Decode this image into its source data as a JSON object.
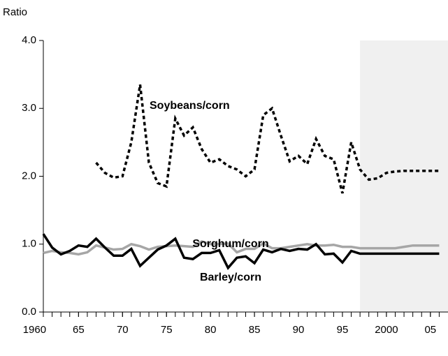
{
  "chart_data": {
    "type": "line",
    "y_axis_label": "Ratio",
    "x": [
      1961,
      1962,
      1963,
      1964,
      1965,
      1966,
      1967,
      1968,
      1969,
      1970,
      1971,
      1972,
      1973,
      1974,
      1975,
      1976,
      1977,
      1978,
      1979,
      1980,
      1981,
      1982,
      1983,
      1984,
      1985,
      1986,
      1987,
      1988,
      1989,
      1990,
      1991,
      1992,
      1993,
      1994,
      1995,
      1996,
      1997,
      1998,
      1999,
      2000,
      2001,
      2002,
      2003,
      2004,
      2005,
      2006
    ],
    "series": [
      {
        "name": "Soybeans/corn",
        "color": "#000000",
        "dash": "dotted",
        "values": [
          null,
          null,
          null,
          null,
          null,
          null,
          2.2,
          2.05,
          1.98,
          2.0,
          2.5,
          3.35,
          2.2,
          1.9,
          1.85,
          2.85,
          2.6,
          2.72,
          2.4,
          2.2,
          2.25,
          2.15,
          2.1,
          2.0,
          2.1,
          2.9,
          3.0,
          2.6,
          2.22,
          2.3,
          2.18,
          2.55,
          2.3,
          2.25,
          1.75,
          2.5,
          2.1,
          1.95,
          1.97,
          2.05,
          2.07,
          2.08,
          2.08,
          2.08,
          2.08,
          2.08
        ]
      },
      {
        "name": "Sorghum/corn",
        "color": "#a6a6a6",
        "dash": "solid",
        "values": [
          0.87,
          0.9,
          0.88,
          0.87,
          0.85,
          0.88,
          0.98,
          0.95,
          0.92,
          0.93,
          1.0,
          0.97,
          0.92,
          0.96,
          0.97,
          0.98,
          0.97,
          0.96,
          1.04,
          1.0,
          1.0,
          1.01,
          0.88,
          0.93,
          0.93,
          1.01,
          0.94,
          0.94,
          0.96,
          0.98,
          1.0,
          0.98,
          0.98,
          0.99,
          0.96,
          0.96,
          0.94,
          0.94,
          0.94,
          0.94,
          0.94,
          0.96,
          0.98,
          0.98,
          0.98,
          0.98
        ]
      },
      {
        "name": "Barley/corn",
        "color": "#000000",
        "dash": "solid",
        "values": [
          1.15,
          0.95,
          0.85,
          0.9,
          0.98,
          0.96,
          1.08,
          0.95,
          0.83,
          0.83,
          0.93,
          0.68,
          0.8,
          0.92,
          0.98,
          1.08,
          0.8,
          0.78,
          0.87,
          0.87,
          0.91,
          0.65,
          0.8,
          0.82,
          0.72,
          0.92,
          0.88,
          0.93,
          0.9,
          0.93,
          0.92,
          1.0,
          0.85,
          0.86,
          0.73,
          0.9,
          0.86,
          0.86,
          0.86,
          0.86,
          0.86,
          0.86,
          0.86,
          0.86,
          0.86,
          0.86
        ]
      }
    ],
    "xlim": [
      1961,
      2007
    ],
    "xticks": [
      1960,
      {
        "value": 1965,
        "label": "65"
      },
      {
        "value": 1970,
        "label": "70"
      },
      {
        "value": 1975,
        "label": "75"
      },
      {
        "value": 1980,
        "label": "80"
      },
      {
        "value": 1985,
        "label": "85"
      },
      {
        "value": 1990,
        "label": "90"
      },
      {
        "value": 1995,
        "label": "95"
      },
      2000,
      {
        "value": 2005,
        "label": "05"
      }
    ],
    "ylim": [
      0,
      4
    ],
    "yticks": [
      {
        "value": 0,
        "label": "0.0"
      },
      {
        "value": 1,
        "label": "1.0"
      },
      {
        "value": 2,
        "label": "2.0"
      },
      {
        "value": 3,
        "label": "3.0"
      },
      {
        "value": 4,
        "label": "4.0"
      }
    ],
    "shade_xlim": [
      1997,
      2007
    ],
    "shade_color": "#f0f0f0",
    "grid": false
  }
}
